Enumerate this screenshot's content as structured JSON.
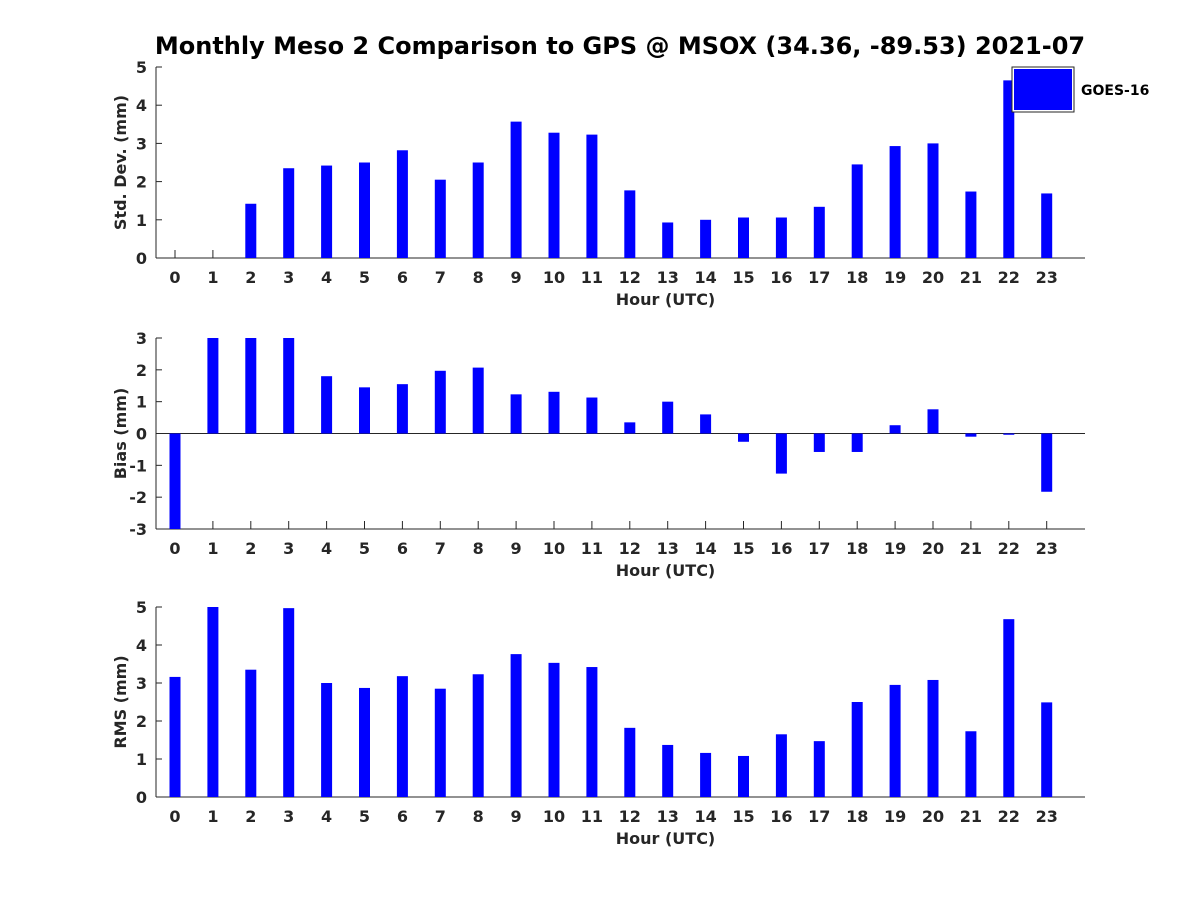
{
  "title": "Monthly Meso 2 Comparison to GPS @ MSOX (34.36, -89.53) 2021-07",
  "bar_color": "#0000ff",
  "legend": {
    "label": "GOES-16",
    "location": "top-right"
  },
  "chart_data": [
    {
      "type": "bar",
      "name": "std-dev",
      "title": "Monthly Meso 2 Comparison to GPS @ MSOX (34.36, -89.53) 2021-07",
      "xlabel": "Hour (UTC)",
      "ylabel": "Std. Dev. (mm)",
      "ylim": [
        0,
        5
      ],
      "yticks": [
        "0",
        "1",
        "2",
        "3",
        "4",
        "5"
      ],
      "categories": [
        "0",
        "1",
        "2",
        "3",
        "4",
        "5",
        "6",
        "7",
        "8",
        "9",
        "10",
        "11",
        "12",
        "13",
        "14",
        "15",
        "16",
        "17",
        "18",
        "19",
        "20",
        "21",
        "22",
        "23"
      ],
      "values": [
        0,
        0,
        1.42,
        2.35,
        2.42,
        2.5,
        2.82,
        2.05,
        2.5,
        3.57,
        3.28,
        3.23,
        1.77,
        0.93,
        1.0,
        1.06,
        1.06,
        1.34,
        2.45,
        2.93,
        3.0,
        1.74,
        4.65,
        1.69
      ],
      "grid": false
    },
    {
      "type": "bar",
      "name": "bias",
      "xlabel": "Hour (UTC)",
      "ylabel": "Bias (mm)",
      "ylim": [
        -3,
        3
      ],
      "yticks": [
        "-3",
        "-2",
        "-1",
        "0",
        "1",
        "2",
        "3"
      ],
      "categories": [
        "0",
        "1",
        "2",
        "3",
        "4",
        "5",
        "6",
        "7",
        "8",
        "9",
        "10",
        "11",
        "12",
        "13",
        "14",
        "15",
        "16",
        "17",
        "18",
        "19",
        "20",
        "21",
        "22",
        "23"
      ],
      "values": [
        -3.0,
        3.0,
        3.0,
        3.0,
        1.8,
        1.45,
        1.55,
        1.97,
        2.07,
        1.23,
        1.31,
        1.13,
        0.35,
        1.0,
        0.6,
        -0.26,
        -1.26,
        -0.58,
        -0.58,
        0.26,
        0.76,
        -0.1,
        -0.04,
        -1.83
      ],
      "grid": false
    },
    {
      "type": "bar",
      "name": "rms",
      "xlabel": "Hour (UTC)",
      "ylabel": "RMS (mm)",
      "ylim": [
        0,
        5
      ],
      "yticks": [
        "0",
        "1",
        "2",
        "3",
        "4",
        "5"
      ],
      "categories": [
        "0",
        "1",
        "2",
        "3",
        "4",
        "5",
        "6",
        "7",
        "8",
        "9",
        "10",
        "11",
        "12",
        "13",
        "14",
        "15",
        "16",
        "17",
        "18",
        "19",
        "20",
        "21",
        "22",
        "23"
      ],
      "values": [
        3.16,
        5.0,
        3.35,
        4.97,
        3.0,
        2.87,
        3.18,
        2.85,
        3.23,
        3.76,
        3.53,
        3.42,
        1.82,
        1.37,
        1.16,
        1.08,
        1.65,
        1.47,
        2.5,
        2.95,
        3.08,
        1.73,
        4.68,
        2.49
      ],
      "grid": false
    }
  ]
}
